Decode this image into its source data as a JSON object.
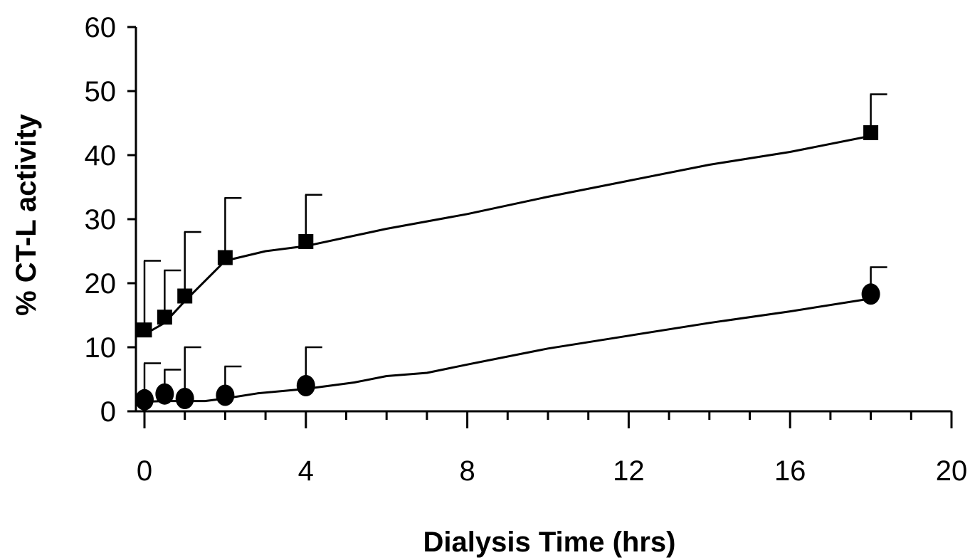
{
  "chart_data": {
    "type": "scatter",
    "title": "",
    "xlabel": "Dialysis Time (hrs)",
    "ylabel": "% CT-L activity",
    "xlim": [
      0,
      20
    ],
    "ylim": [
      0,
      60
    ],
    "x_ticks": [
      "0",
      "4",
      "8",
      "12",
      "16",
      "20"
    ],
    "y_ticks": [
      "0",
      "10",
      "20",
      "30",
      "40",
      "50",
      "60"
    ],
    "grid": false,
    "legend": "none",
    "series": [
      {
        "marker": "square",
        "points": [
          {
            "x": 0,
            "y": 12.7,
            "err": 10.8
          },
          {
            "x": 0.5,
            "y": 14.7,
            "err": 7.3
          },
          {
            "x": 1,
            "y": 18.0,
            "err": 10.0
          },
          {
            "x": 2,
            "y": 24.0,
            "err": 9.3
          },
          {
            "x": 4,
            "y": 26.5,
            "err": 7.3
          },
          {
            "x": 18,
            "y": 43.5,
            "err": 6.0
          }
        ],
        "trend": [
          [
            0,
            12.0
          ],
          [
            0.5,
            13.8
          ],
          [
            1,
            17.2
          ],
          [
            2,
            23.5
          ],
          [
            3,
            25.0
          ],
          [
            4,
            25.8
          ],
          [
            6,
            28.5
          ],
          [
            8,
            30.8
          ],
          [
            10,
            33.5
          ],
          [
            12,
            36.0
          ],
          [
            14,
            38.5
          ],
          [
            16,
            40.5
          ],
          [
            18,
            43.0
          ]
        ]
      },
      {
        "marker": "circle",
        "points": [
          {
            "x": 0,
            "y": 1.8,
            "err": 5.7
          },
          {
            "x": 0.5,
            "y": 2.7,
            "err": 3.8
          },
          {
            "x": 1,
            "y": 2.0,
            "err": 8.0
          },
          {
            "x": 2,
            "y": 2.5,
            "err": 4.5
          },
          {
            "x": 4,
            "y": 4.0,
            "err": 6.0
          },
          {
            "x": 18,
            "y": 18.3,
            "err": 4.2
          }
        ],
        "trend": [
          [
            0,
            1.5
          ],
          [
            0.5,
            1.6
          ],
          [
            1,
            1.6
          ],
          [
            1.5,
            1.6
          ],
          [
            2,
            2.0
          ],
          [
            2.8,
            2.8
          ],
          [
            4,
            3.5
          ],
          [
            5.2,
            4.5
          ],
          [
            6,
            5.5
          ],
          [
            7,
            6.0
          ],
          [
            8,
            7.3
          ],
          [
            10,
            9.8
          ],
          [
            12,
            11.8
          ],
          [
            14,
            13.8
          ],
          [
            16,
            15.6
          ],
          [
            18,
            17.6
          ]
        ]
      }
    ]
  }
}
